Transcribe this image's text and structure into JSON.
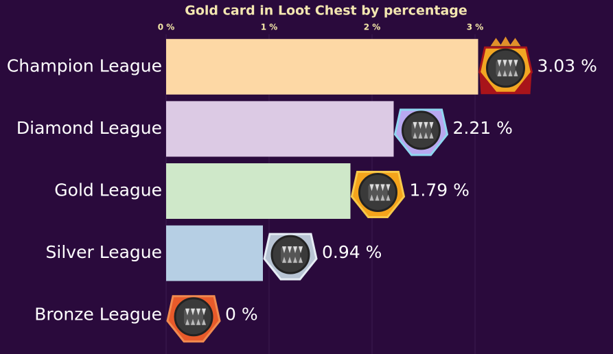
{
  "chart_data": {
    "type": "hbar",
    "title": "Gold card in Loot Chest by percentage",
    "categories": [
      "Champion League",
      "Diamond League",
      "Gold League",
      "Silver League",
      "Bronze League"
    ],
    "values": [
      3.03,
      2.21,
      1.79,
      0.94,
      0
    ],
    "value_labels": [
      "3.03 %",
      "2.21 %",
      "1.79 %",
      "0.94 %",
      "0 %"
    ],
    "colors": [
      "#fdd8a5",
      "#dccae4",
      "#cfe8c9",
      "#b6cfe4",
      "#e8876a"
    ],
    "xlim": [
      0,
      4.34
    ],
    "xticks": [
      {
        "value": 0,
        "label": "0 %"
      },
      {
        "value": 1,
        "label": "1 %"
      },
      {
        "value": 2,
        "label": "2 %"
      },
      {
        "value": 3,
        "label": "3 %"
      }
    ],
    "grid": true
  }
}
